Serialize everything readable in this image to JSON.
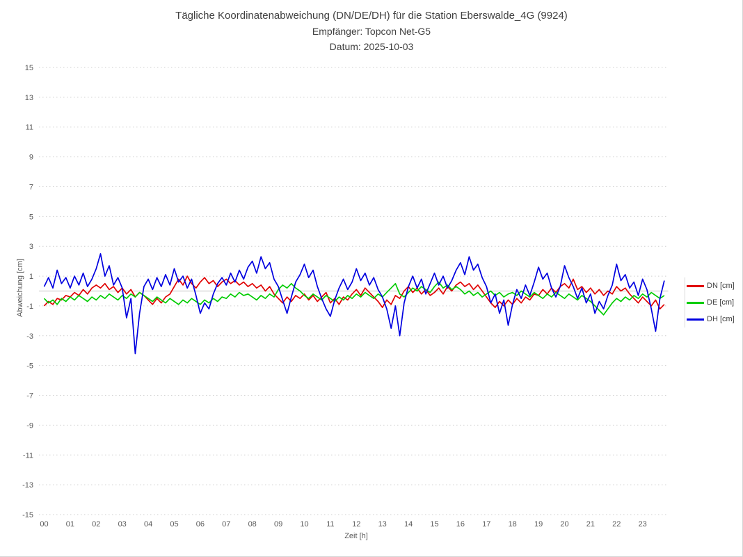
{
  "header": {
    "title": "Tägliche Koordinatenabweichung (DN/DE/DH) für die Station Eberswalde_4G (9924)",
    "subtitle": "Empfänger: Topcon Net-G5",
    "date_label": "Datum: 2025-10-03"
  },
  "chart_data": {
    "type": "line",
    "title": "Tägliche Koordinatenabweichung (DN/DE/DH) für die Station Eberswalde_4G (9924)",
    "subtitle": "Empfänger: Topcon Net-G5",
    "date_label": "Datum: 2025-10-03",
    "xlabel": "Zeit [h]",
    "ylabel": "Abweichung [cm]",
    "xlim": [
      0,
      24
    ],
    "ylim": [
      -15,
      15
    ],
    "yticks": [
      15,
      13,
      11,
      9,
      7,
      5,
      3,
      1,
      -1,
      -3,
      -5,
      -7,
      -9,
      -11,
      -13,
      -15
    ],
    "xticks": [
      "00",
      "01",
      "02",
      "03",
      "04",
      "05",
      "06",
      "07",
      "08",
      "09",
      "10",
      "11",
      "12",
      "13",
      "14",
      "15",
      "16",
      "17",
      "18",
      "19",
      "20",
      "21",
      "22",
      "23"
    ],
    "grid": "horizontal dashed, zero line solid, no vertical gridlines",
    "legend_position": "right",
    "zero_line_color": "#bfbfbf",
    "gridline_color": "#cfcfcf",
    "hours_per_point": 0.166667,
    "series": [
      {
        "name": "DN [cm]",
        "color": "#e00000",
        "values": [
          -1.0,
          -0.7,
          -0.9,
          -0.5,
          -0.6,
          -0.3,
          -0.4,
          -0.1,
          -0.3,
          0.1,
          -0.2,
          0.2,
          0.4,
          0.2,
          0.5,
          0.1,
          0.3,
          -0.1,
          0.2,
          -0.2,
          0.1,
          -0.4,
          -0.1,
          -0.3,
          -0.6,
          -0.9,
          -0.5,
          -0.8,
          -0.4,
          -0.2,
          0.3,
          0.8,
          0.4,
          1.0,
          0.5,
          0.2,
          0.6,
          0.9,
          0.5,
          0.7,
          0.3,
          0.6,
          0.8,
          0.5,
          0.7,
          0.4,
          0.6,
          0.3,
          0.5,
          0.2,
          0.4,
          0.0,
          0.3,
          -0.2,
          -0.5,
          -0.8,
          -0.4,
          -0.7,
          -0.3,
          -0.5,
          -0.2,
          -0.6,
          -0.3,
          -0.7,
          -0.4,
          -0.1,
          -0.8,
          -0.5,
          -0.9,
          -0.4,
          -0.6,
          -0.2,
          0.1,
          -0.3,
          0.2,
          -0.1,
          -0.4,
          -0.7,
          -1.1,
          -0.6,
          -0.9,
          -0.3,
          -0.5,
          0.0,
          0.3,
          -0.1,
          0.2,
          -0.2,
          0.1,
          -0.3,
          -0.1,
          0.2,
          -0.2,
          0.3,
          0.0,
          0.4,
          0.6,
          0.3,
          0.5,
          0.1,
          0.4,
          0.0,
          -0.4,
          -0.8,
          -1.1,
          -0.7,
          -1.0,
          -0.6,
          -0.9,
          -0.5,
          -0.8,
          -0.4,
          -0.6,
          -0.2,
          -0.3,
          0.1,
          -0.2,
          0.2,
          -0.1,
          0.3,
          0.5,
          0.2,
          0.8,
          0.1,
          0.3,
          -0.1,
          0.2,
          -0.2,
          0.1,
          -0.3,
          0.0,
          -0.2,
          0.3,
          0.0,
          0.2,
          -0.2,
          -0.5,
          -0.8,
          -0.4,
          -0.7,
          -1.0,
          -0.6,
          -1.2,
          -0.9
        ]
      },
      {
        "name": "DE [cm]",
        "color": "#00cc00",
        "values": [
          -0.5,
          -0.8,
          -0.6,
          -0.9,
          -0.5,
          -0.7,
          -0.4,
          -0.6,
          -0.3,
          -0.5,
          -0.7,
          -0.4,
          -0.6,
          -0.3,
          -0.5,
          -0.2,
          -0.4,
          -0.6,
          -0.3,
          -0.5,
          -0.2,
          -0.4,
          -0.1,
          -0.3,
          -0.5,
          -0.7,
          -0.4,
          -0.6,
          -0.8,
          -0.5,
          -0.7,
          -0.9,
          -0.6,
          -0.8,
          -0.5,
          -0.7,
          -0.9,
          -0.6,
          -0.8,
          -0.5,
          -0.7,
          -0.4,
          -0.5,
          -0.2,
          -0.4,
          -0.1,
          -0.3,
          -0.2,
          -0.4,
          -0.6,
          -0.3,
          -0.5,
          -0.2,
          -0.4,
          0.1,
          0.4,
          0.2,
          0.5,
          0.2,
          0.0,
          -0.3,
          -0.5,
          -0.2,
          -0.4,
          -0.6,
          -0.3,
          -0.5,
          -0.7,
          -0.4,
          -0.6,
          -0.3,
          -0.5,
          -0.2,
          -0.4,
          -0.1,
          -0.3,
          -0.5,
          -0.2,
          -0.4,
          -0.1,
          0.2,
          0.5,
          -0.2,
          -0.4,
          -0.1,
          0.2,
          0.0,
          0.3,
          0.1,
          -0.1,
          0.3,
          0.6,
          0.2,
          0.4,
          0.1,
          0.3,
          0.1,
          -0.2,
          0.0,
          -0.3,
          -0.1,
          -0.4,
          -0.2,
          0.0,
          -0.3,
          -0.1,
          -0.4,
          -0.2,
          -0.1,
          -0.3,
          0.0,
          -0.2,
          -0.4,
          -0.1,
          -0.3,
          -0.5,
          -0.2,
          -0.4,
          -0.1,
          -0.3,
          -0.5,
          -0.2,
          -0.4,
          -0.6,
          -0.3,
          -0.5,
          -0.7,
          -1.0,
          -1.3,
          -1.6,
          -1.2,
          -0.8,
          -0.5,
          -0.7,
          -0.4,
          -0.6,
          -0.3,
          -0.5,
          -0.2,
          -0.4,
          -0.1,
          -0.3,
          -0.5,
          -0.3
        ]
      },
      {
        "name": "DH [cm]",
        "color": "#0000e0",
        "values": [
          0.3,
          0.9,
          0.2,
          1.4,
          0.5,
          0.9,
          0.2,
          1.0,
          0.4,
          1.2,
          0.3,
          0.8,
          1.5,
          2.5,
          1.0,
          1.7,
          0.4,
          0.9,
          0.2,
          -1.8,
          -0.5,
          -4.2,
          -1.5,
          0.3,
          0.8,
          0.1,
          0.9,
          0.3,
          1.1,
          0.4,
          1.5,
          0.6,
          1.0,
          0.2,
          0.8,
          -0.3,
          -1.5,
          -0.8,
          -1.2,
          -0.2,
          0.5,
          0.9,
          0.4,
          1.2,
          0.6,
          1.4,
          0.8,
          1.6,
          2.0,
          1.2,
          2.3,
          1.5,
          1.9,
          0.8,
          0.3,
          -0.6,
          -1.5,
          -0.4,
          0.6,
          1.1,
          1.8,
          0.9,
          1.4,
          0.3,
          -0.5,
          -1.2,
          -1.7,
          -0.6,
          0.2,
          0.8,
          0.1,
          0.6,
          1.5,
          0.7,
          1.2,
          0.4,
          0.9,
          0.1,
          -0.4,
          -1.2,
          -2.5,
          -1.0,
          -3.0,
          -0.8,
          0.3,
          1.0,
          0.2,
          0.8,
          -0.2,
          0.5,
          1.2,
          0.4,
          1.0,
          0.2,
          0.7,
          1.4,
          1.9,
          1.1,
          2.3,
          1.4,
          1.8,
          0.9,
          0.3,
          -0.8,
          -0.2,
          -1.5,
          -0.6,
          -2.3,
          -0.9,
          0.1,
          -0.5,
          0.4,
          -0.3,
          0.6,
          1.6,
          0.8,
          1.2,
          0.2,
          -0.4,
          0.3,
          1.7,
          0.9,
          0.3,
          -0.5,
          0.2,
          -0.8,
          -0.2,
          -1.5,
          -0.7,
          -1.2,
          -0.3,
          0.4,
          1.8,
          0.7,
          1.1,
          0.2,
          0.6,
          -0.3,
          0.8,
          0.1,
          -1.2,
          -2.7,
          -0.5,
          0.7
        ]
      }
    ]
  }
}
